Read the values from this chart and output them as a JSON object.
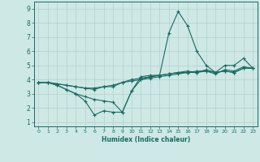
{
  "xlabel": "Humidex (Indice chaleur)",
  "xlim": [
    -0.5,
    23.5
  ],
  "ylim": [
    0.7,
    9.5
  ],
  "xticks": [
    0,
    1,
    2,
    3,
    4,
    5,
    6,
    7,
    8,
    9,
    10,
    11,
    12,
    13,
    14,
    15,
    16,
    17,
    18,
    19,
    20,
    21,
    22,
    23
  ],
  "yticks": [
    1,
    2,
    3,
    4,
    5,
    6,
    7,
    8,
    9
  ],
  "bg_color": "#cde8e5",
  "grid_color": "#b5d0cc",
  "line_color": "#1a6b62",
  "series": [
    [
      3.8,
      3.8,
      3.6,
      3.3,
      3.0,
      2.5,
      1.5,
      1.8,
      1.7,
      1.7,
      3.2,
      4.2,
      4.3,
      4.3,
      7.3,
      8.8,
      7.8,
      6.0,
      5.0,
      4.5,
      5.0,
      5.0,
      5.5,
      4.8
    ],
    [
      3.8,
      3.8,
      3.6,
      3.3,
      3.0,
      2.8,
      2.6,
      2.5,
      2.4,
      1.7,
      3.2,
      4.0,
      4.2,
      4.3,
      4.4,
      4.5,
      4.5,
      4.6,
      4.6,
      4.4,
      4.7,
      4.6,
      4.9,
      4.8
    ],
    [
      3.8,
      3.8,
      3.7,
      3.6,
      3.5,
      3.4,
      3.3,
      3.5,
      3.5,
      3.8,
      3.9,
      4.0,
      4.1,
      4.2,
      4.3,
      4.4,
      4.5,
      4.5,
      4.6,
      4.5,
      4.6,
      4.5,
      4.8,
      4.8
    ],
    [
      3.8,
      3.8,
      3.7,
      3.6,
      3.5,
      3.4,
      3.4,
      3.5,
      3.6,
      3.8,
      4.0,
      4.1,
      4.2,
      4.3,
      4.4,
      4.5,
      4.6,
      4.5,
      4.7,
      4.5,
      4.6,
      4.5,
      4.8,
      4.8
    ]
  ]
}
